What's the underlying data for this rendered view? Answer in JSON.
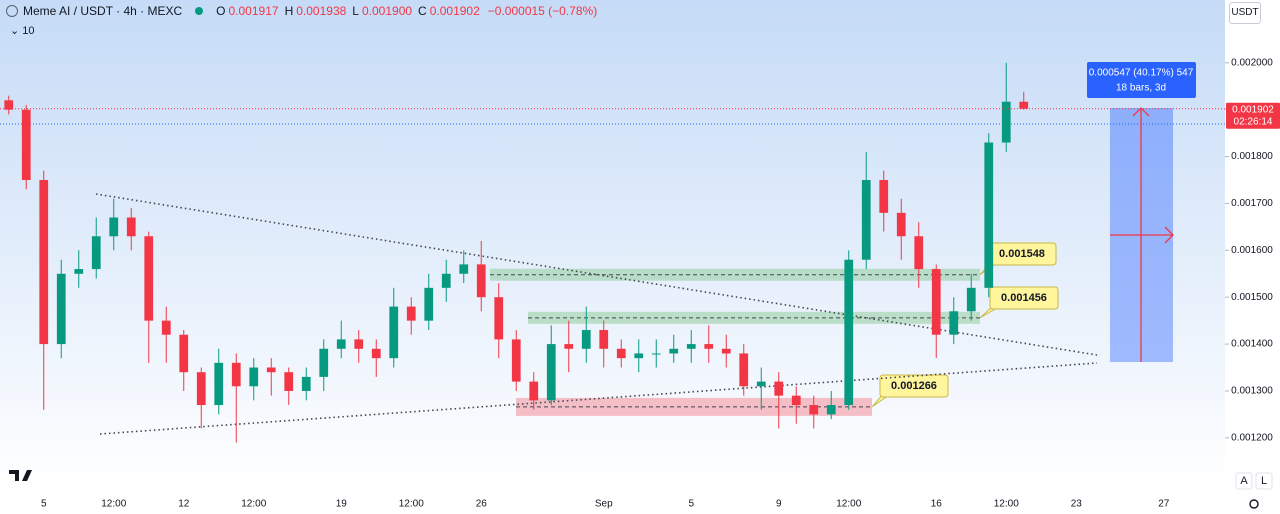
{
  "chart_data": {
    "type": "candlestick",
    "title": "Meme AI / USDT · 4h · MEXC",
    "legend": [
      {
        "key": "O",
        "text": "0.001917"
      },
      {
        "key": "H",
        "text": "0.001938"
      },
      {
        "key": "L",
        "text": "0.001900"
      },
      {
        "key": "C",
        "text": "0.001902"
      }
    ],
    "change": "−0.000015 (−0.78%)",
    "indicator": "10",
    "currency": "USDT",
    "categories": [
      null,
      null,
      "5",
      null,
      null,
      null,
      "12:00",
      null,
      null,
      null,
      "12",
      null,
      null,
      null,
      "12:00",
      null,
      null,
      null,
      null,
      "19",
      null,
      null,
      null,
      "12:00",
      null,
      null,
      null,
      "26",
      null,
      null,
      null,
      null,
      null,
      null,
      "Sep",
      null,
      null,
      null,
      null,
      "5",
      null,
      null,
      null,
      null,
      "9",
      null,
      null,
      null,
      "12:00",
      null,
      null,
      null,
      null,
      "16",
      null,
      null,
      null,
      "12:00",
      null,
      null,
      null,
      "23",
      null,
      null,
      null,
      null,
      "27",
      null,
      null,
      null
    ],
    "open": [
      0.00192,
      0.0019,
      0.00175,
      0.0014,
      0.00155,
      0.00156,
      0.00163,
      0.00167,
      0.00163,
      0.00145,
      0.00142,
      0.00134,
      0.00127,
      0.00136,
      0.00131,
      0.00135,
      0.00134,
      0.0013,
      0.00133,
      0.00139,
      0.00141,
      0.00139,
      0.00137,
      0.00148,
      0.00145,
      0.00152,
      0.00155,
      0.00157,
      0.0015,
      0.00141,
      0.00132,
      0.00128,
      0.0014,
      0.00139,
      0.00143,
      0.00139,
      0.00137,
      0.00138,
      0.00138,
      0.00139,
      0.0014,
      0.00139,
      0.00138,
      0.00131,
      0.00132,
      0.00129,
      0.00127,
      0.00125,
      0.00127,
      0.00158,
      0.00175,
      0.00168,
      0.00163,
      0.00156,
      0.00142,
      0.00147,
      0.00152,
      0.00183,
      0.001917,
      null,
      null,
      null,
      null,
      null,
      null,
      null,
      null,
      null,
      null,
      null
    ],
    "high": [
      0.00193,
      0.00191,
      0.00177,
      0.00158,
      0.0016,
      0.00167,
      0.00171,
      0.00169,
      0.00164,
      0.00148,
      0.00143,
      0.00135,
      0.00139,
      0.00138,
      0.00137,
      0.00137,
      0.00135,
      0.00135,
      0.00141,
      0.00145,
      0.00143,
      0.00141,
      0.00152,
      0.0015,
      0.00155,
      0.00158,
      0.0016,
      0.00162,
      0.00153,
      0.00143,
      0.00134,
      0.00144,
      0.00145,
      0.00148,
      0.00145,
      0.00141,
      0.00141,
      0.00141,
      0.00142,
      0.00143,
      0.00144,
      0.00142,
      0.0014,
      0.00135,
      0.00134,
      0.00131,
      0.00129,
      0.0013,
      0.0016,
      0.00181,
      0.00177,
      0.00171,
      0.00166,
      0.00157,
      0.0015,
      0.00155,
      0.00185,
      0.002,
      0.001938,
      null,
      null,
      null,
      null,
      null,
      null,
      null,
      null,
      null,
      null,
      null
    ],
    "low": [
      0.00189,
      0.00173,
      0.00126,
      0.00137,
      0.00152,
      0.00154,
      0.0016,
      0.0016,
      0.00136,
      0.00136,
      0.0013,
      0.00122,
      0.00125,
      0.00119,
      0.00128,
      0.00129,
      0.00127,
      0.00128,
      0.0013,
      0.00137,
      0.00136,
      0.00133,
      0.00135,
      0.00142,
      0.00143,
      0.00149,
      0.00153,
      0.00147,
      0.00137,
      0.0013,
      0.00126,
      0.00127,
      0.00134,
      0.00136,
      0.00135,
      0.00135,
      0.00134,
      0.00135,
      0.00136,
      0.00136,
      0.00136,
      0.00135,
      0.00129,
      0.00126,
      0.00122,
      0.00123,
      0.00122,
      0.00124,
      0.00126,
      0.00156,
      0.00164,
      0.00158,
      0.00152,
      0.00137,
      0.0014,
      0.00145,
      0.0015,
      0.00181,
      0.0019,
      null,
      null,
      null,
      null,
      null,
      null,
      null,
      null,
      null,
      null,
      null
    ],
    "close": [
      0.0019,
      0.00175,
      0.0014,
      0.00155,
      0.00156,
      0.00163,
      0.00167,
      0.00163,
      0.00145,
      0.00142,
      0.00134,
      0.00127,
      0.00136,
      0.00131,
      0.00135,
      0.00134,
      0.0013,
      0.00133,
      0.00139,
      0.00141,
      0.00139,
      0.00137,
      0.00148,
      0.00145,
      0.00152,
      0.00155,
      0.00157,
      0.0015,
      0.00141,
      0.00132,
      0.00128,
      0.0014,
      0.00139,
      0.00143,
      0.00139,
      0.00137,
      0.00138,
      0.00138,
      0.00139,
      0.0014,
      0.00139,
      0.00138,
      0.00131,
      0.00132,
      0.00129,
      0.00127,
      0.00125,
      0.00127,
      0.00158,
      0.00175,
      0.00168,
      0.00163,
      0.00156,
      0.00142,
      0.00147,
      0.00152,
      0.00183,
      0.001917,
      0.001902,
      null,
      null,
      null,
      null,
      null,
      null,
      null,
      null,
      null,
      null,
      null
    ],
    "up_color": "#089981",
    "down_color": "#f23645",
    "ylim": [
      0.001093,
      0.002134
    ],
    "yticks": [
      {
        "value": 0.0012,
        "label": "0.001200"
      },
      {
        "value": 0.0013,
        "label": "0.001300"
      },
      {
        "value": 0.0014,
        "label": "0.001400"
      },
      {
        "value": 0.0015,
        "label": "0.001500"
      },
      {
        "value": 0.0016,
        "label": "0.001600"
      },
      {
        "value": 0.0017,
        "label": "0.001700"
      },
      {
        "value": 0.0018,
        "label": "0.001800"
      },
      {
        "value": 0.0019,
        "label": "0.001900"
      },
      {
        "value": 0.002,
        "label": "0.002000"
      }
    ],
    "last_price": 0.001902,
    "countdown": "02:26:14",
    "measure": {
      "text": "0.000547 (40.17%) 547",
      "bars": "18 bars, 3d"
    },
    "annotations": [
      {
        "value": 0.001548,
        "color": "#4caf50"
      },
      {
        "value": 0.001456,
        "color": "#4caf50"
      },
      {
        "value": 0.001266,
        "color": "#f23645"
      }
    ],
    "corner_buttons": [
      "A",
      "L"
    ]
  }
}
